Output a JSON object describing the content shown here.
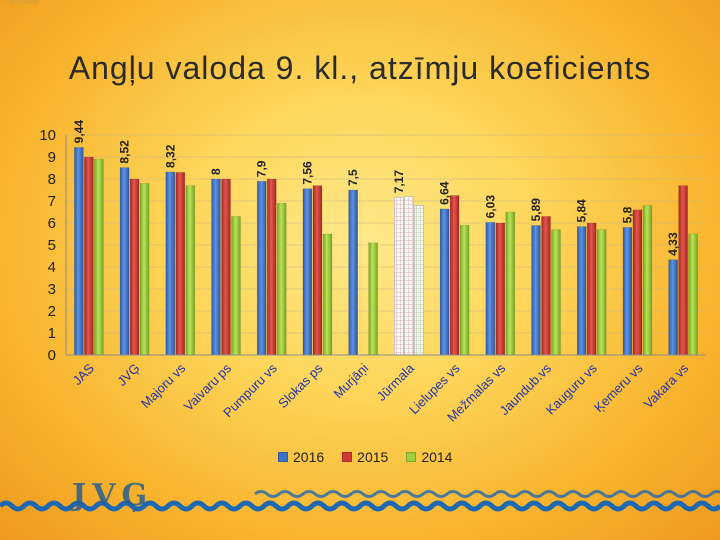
{
  "slide": {
    "title": "Angļu valoda 9. kl., atzīmju koeficients",
    "logo_text": "JVĢ",
    "corner_tag": "Light Design"
  },
  "colors": {
    "2016": "#3d72c9",
    "2015": "#cf3a34",
    "2014": "#9ccf3c",
    "highlight": "#f3f3f3",
    "axis": "#999999",
    "wave": "#1e67b3"
  },
  "chart_data": {
    "type": "bar",
    "title": "Angļu valoda 9. kl., atzīmju koeficients",
    "categories": [
      "JAS",
      "JVĢ",
      "Majoru vs",
      "Vaivaru ps",
      "Pumpuru vs",
      "Slokas ps",
      "Murjāņi",
      "Jūrmala",
      "Lielupes vs",
      "Mežmalas vs",
      "Jaundub.vs",
      "Kauguru vs",
      "Ķemeru vs",
      "Vakara vs"
    ],
    "series": [
      {
        "name": "2016",
        "values": [
          9.44,
          8.52,
          8.32,
          8.0,
          7.9,
          7.56,
          7.5,
          7.17,
          6.64,
          6.03,
          5.89,
          5.84,
          5.8,
          4.33
        ]
      },
      {
        "name": "2015",
        "values": [
          9.0,
          8.0,
          8.3,
          8.0,
          8.0,
          7.7,
          null,
          7.2,
          7.25,
          6.0,
          6.3,
          6.0,
          6.6,
          7.7
        ]
      },
      {
        "name": "2014",
        "values": [
          8.9,
          7.8,
          7.7,
          6.3,
          6.9,
          5.5,
          5.1,
          6.8,
          5.9,
          6.5,
          5.7,
          5.7,
          6.8,
          5.5
        ]
      }
    ],
    "data_labels": [
      "9,44",
      "8,52",
      "8,32",
      "8",
      "7,9",
      "7,56",
      "7,5",
      "7,17",
      "6,64",
      "6,03",
      "5,89",
      "5,84",
      "5,8",
      "4,33"
    ],
    "highlight_category": "Jūrmala",
    "ylim": [
      0,
      10
    ],
    "yticks": [
      0,
      1,
      2,
      3,
      4,
      5,
      6,
      7,
      8,
      9,
      10
    ],
    "grid": true,
    "legend_position": "bottom",
    "xlabel": "",
    "ylabel": ""
  }
}
